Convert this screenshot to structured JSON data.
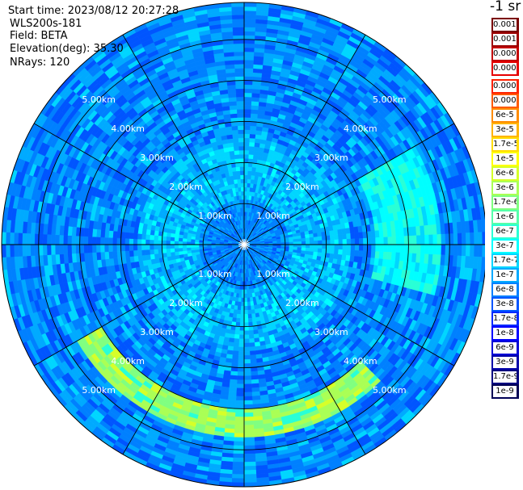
{
  "header": {
    "start_time": "Start time: 2023/08/12 20:27:28",
    "instrument": "WLS200s-181",
    "field": "Field: BETA",
    "elevation": "Elevation(deg): 35.30",
    "nrays": "NRays: 120"
  },
  "colorbar": {
    "unit": "-1 sr",
    "entries": [
      {
        "label": "0.0017",
        "color": "#7a0000"
      },
      {
        "label": "0.001",
        "color": "#9e0000"
      },
      {
        "label": "0.0006",
        "color": "#c40000"
      },
      {
        "label": "0.0003",
        "color": "#e60000"
      },
      {
        "label": "0.00017",
        "color": "#ff2200"
      },
      {
        "label": "0.0001",
        "color": "#ff5a00"
      },
      {
        "label": "6e-5",
        "color": "#ff8c00"
      },
      {
        "label": "3e-5",
        "color": "#ffb400"
      },
      {
        "label": "1.7e-5",
        "color": "#ffdc00"
      },
      {
        "label": "1e-5",
        "color": "#ffff00"
      },
      {
        "label": "6e-6",
        "color": "#d6ff29"
      },
      {
        "label": "3e-6",
        "color": "#aaff55"
      },
      {
        "label": "1.7e-6",
        "color": "#80ff80"
      },
      {
        "label": "1e-6",
        "color": "#55ffaa"
      },
      {
        "label": "6e-7",
        "color": "#29ffd6"
      },
      {
        "label": "3e-7",
        "color": "#00ffff"
      },
      {
        "label": "1.7e-7",
        "color": "#00d6ff"
      },
      {
        "label": "1e-7",
        "color": "#00aaff"
      },
      {
        "label": "6e-8",
        "color": "#0080ff"
      },
      {
        "label": "3e-8",
        "color": "#0055ff"
      },
      {
        "label": "1.7e-8",
        "color": "#0029ff"
      },
      {
        "label": "1e-8",
        "color": "#0000ff"
      },
      {
        "label": "6e-9",
        "color": "#0000d6"
      },
      {
        "label": "3e-9",
        "color": "#0000aa"
      },
      {
        "label": "1.7e-9",
        "color": "#000080"
      },
      {
        "label": "1e-9",
        "color": "#000055"
      }
    ]
  },
  "chart_data": {
    "type": "heatmap",
    "projection": "polar (PPI scan)",
    "field": "BETA",
    "elevation_deg": 35.3,
    "nrays": 120,
    "range_rings_km": [
      1,
      2,
      3,
      4,
      5
    ],
    "ring_labels": [
      "1.00km",
      "2.00km",
      "3.00km",
      "4.00km",
      "5.00km"
    ],
    "max_range_km": 5.9,
    "spoke_angles_deg": [
      0,
      30,
      60,
      90,
      120,
      150,
      180,
      210,
      240,
      270,
      300,
      330
    ],
    "grid": true,
    "background_level": "6e-8 to 1.7e-7",
    "features": [
      {
        "description": "weaker return near center",
        "range_km": [
          0,
          1.1
        ],
        "level": "6e-8"
      },
      {
        "description": "enhanced arc",
        "range_km": [
          4.0,
          4.7
        ],
        "bearing_deg": [
          140,
          235
        ],
        "level": "3e-6"
      },
      {
        "description": "enhanced patch",
        "range_km": [
          3.2,
          4.8
        ],
        "bearing_deg": [
          65,
          100
        ],
        "level": "3e-7"
      }
    ]
  }
}
